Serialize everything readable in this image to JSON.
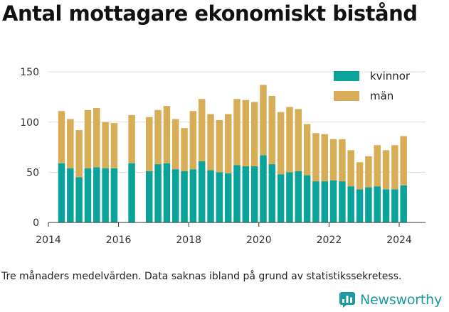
{
  "header": {
    "title": "Antal mottagare ekonomiskt bistånd"
  },
  "footer": {
    "footnote": "Tre månaders medelvärden. Data saknas ibland på grund av statistikssekretess.",
    "brand": "Newsworthy"
  },
  "colors": {
    "kvinnor": "#0aa39a",
    "man": "#d8ad58",
    "brand": "#1b9aa0"
  },
  "chart_data": {
    "type": "bar",
    "stacked": true,
    "title": "Antal mottagare ekonomiskt bistånd",
    "xlabel": "",
    "ylabel": "",
    "ylim": [
      0,
      160
    ],
    "xlim": [
      2014.0,
      2024.75
    ],
    "y_ticks": [
      0,
      50,
      100,
      150
    ],
    "x_ticks": [
      2014,
      2016,
      2018,
      2020,
      2022,
      2024
    ],
    "grid": "horizontal",
    "legend_position": "top-right",
    "series": [
      {
        "name": "kvinnor",
        "color": "#0aa39a",
        "values": [
          59,
          54,
          45,
          54,
          55,
          54,
          54,
          59,
          51,
          58,
          59,
          53,
          51,
          53,
          61,
          52,
          50,
          49,
          57,
          56,
          56,
          67,
          58,
          48,
          50,
          51,
          47,
          41,
          41,
          42,
          41,
          36,
          33,
          35,
          36,
          33,
          33,
          37
        ]
      },
      {
        "name": "män",
        "color": "#d8ad58",
        "values": [
          52,
          49,
          47,
          58,
          59,
          46,
          45,
          48,
          54,
          54,
          57,
          50,
          43,
          58,
          62,
          56,
          52,
          59,
          66,
          66,
          64,
          70,
          68,
          62,
          65,
          62,
          51,
          48,
          47,
          41,
          42,
          36,
          27,
          31,
          41,
          39,
          44,
          49
        ]
      }
    ],
    "x": [
      2014.375,
      2014.625,
      2014.875,
      2015.125,
      2015.375,
      2015.625,
      2015.875,
      2016.375,
      2016.875,
      2017.125,
      2017.375,
      2017.625,
      2017.875,
      2018.125,
      2018.375,
      2018.625,
      2018.875,
      2019.125,
      2019.375,
      2019.625,
      2019.875,
      2020.125,
      2020.375,
      2020.625,
      2020.875,
      2021.125,
      2021.375,
      2021.625,
      2021.875,
      2022.125,
      2022.375,
      2022.625,
      2022.875,
      2023.125,
      2023.375,
      2023.625,
      2023.875,
      2024.125
    ]
  }
}
